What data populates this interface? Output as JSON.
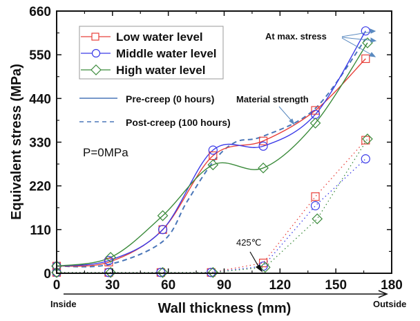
{
  "chart_data": {
    "type": "line",
    "title": "",
    "xlabel": "Wall thickness (mm)",
    "ylabel": "Equivalent stress (MPa)",
    "xlim": [
      0,
      180
    ],
    "ylim": [
      0,
      660
    ],
    "xticks": [
      0,
      30,
      60,
      90,
      120,
      150,
      180
    ],
    "yticks": [
      0,
      110,
      220,
      330,
      440,
      550,
      660
    ],
    "x_direction_labels": {
      "start": "Inside",
      "end": "Outside"
    },
    "condition_label": "P=0MPa",
    "legend_position": "top-left",
    "legend": {
      "markers": [
        {
          "name": "Low water level",
          "color": "#e8403a",
          "marker": "square"
        },
        {
          "name": "Middle water level",
          "color": "#3a3ae8",
          "marker": "circle"
        },
        {
          "name": "High water level",
          "color": "#3a8a3a",
          "marker": "diamond"
        }
      ],
      "line_styles": [
        {
          "name": "Pre-creep (0 hours)",
          "style": "solid",
          "color": "#4a76b8"
        },
        {
          "name": "Post-creep (100 hours)",
          "style": "dashed",
          "color": "#4a76b8"
        }
      ]
    },
    "annotations": {
      "max_stress": "At max. stress",
      "material_strength": "Material strength",
      "temperature": "425℃"
    },
    "series": [
      {
        "name": "Low water level",
        "phase": "pre-creep",
        "color": "#e8403a",
        "marker": "square",
        "x": [
          0,
          28,
          57,
          84,
          111,
          139,
          166
        ],
        "y": [
          18,
          28,
          110,
          296,
          333,
          410,
          540
        ]
      },
      {
        "name": "Middle water level",
        "phase": "pre-creep",
        "color": "#3a3ae8",
        "marker": "circle",
        "x": [
          0,
          28,
          57,
          84,
          111,
          139,
          166
        ],
        "y": [
          18,
          32,
          110,
          310,
          320,
          400,
          610
        ]
      },
      {
        "name": "High water level",
        "phase": "pre-creep",
        "color": "#3a8a3a",
        "marker": "diamond",
        "x": [
          0,
          29,
          57,
          84,
          111,
          139,
          167
        ],
        "y": [
          18,
          40,
          145,
          273,
          265,
          378,
          580
        ]
      },
      {
        "name": "Low water level",
        "phase": "post-creep",
        "color": "#e8403a",
        "marker": "square",
        "x": [
          0,
          28,
          56,
          83,
          111,
          139,
          166
        ],
        "y": [
          2,
          2,
          2,
          2,
          26,
          193,
          335
        ]
      },
      {
        "name": "Middle water level",
        "phase": "post-creep",
        "color": "#3a3ae8",
        "marker": "circle",
        "x": [
          0,
          28,
          56,
          83,
          111,
          139,
          166
        ],
        "y": [
          2,
          2,
          2,
          2,
          18,
          170,
          288
        ]
      },
      {
        "name": "High water level",
        "phase": "post-creep",
        "color": "#3a8a3a",
        "marker": "diamond",
        "x": [
          0,
          29,
          57,
          84,
          112,
          140,
          167
        ],
        "y": [
          2,
          2,
          2,
          2,
          15,
          137,
          338
        ]
      }
    ],
    "material_strength_curve": {
      "color": "#4a76b8",
      "style": "dashed",
      "x": [
        0,
        28,
        57,
        70,
        84,
        96,
        111,
        139,
        166
      ],
      "y": [
        18,
        22,
        80,
        180,
        280,
        330,
        345,
        415,
        590
      ]
    }
  }
}
